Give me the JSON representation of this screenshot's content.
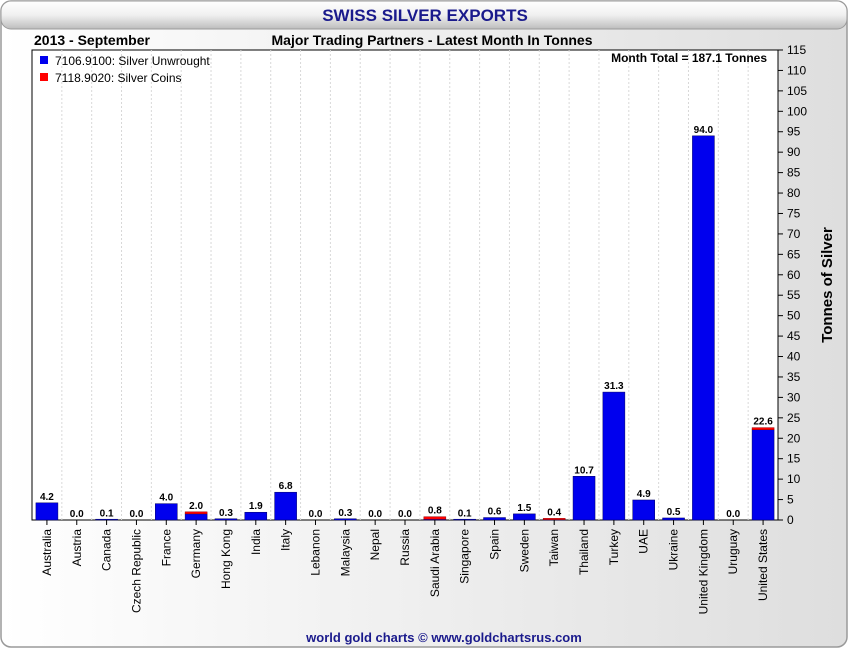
{
  "title": "SWISS SILVER EXPORTS",
  "period": "2013 - September",
  "subtitle": "Major Trading Partners - Latest Month In Tonnes",
  "month_total": "Month Total = 187.1 Tonnes",
  "footer": "world gold charts © www.goldchartsrus.com",
  "colors": {
    "unwrought": "#0000ee",
    "coins": "#ff0000",
    "title": "#1a1a8c"
  },
  "chart_data": {
    "type": "bar",
    "stacked": true,
    "categories": [
      "Australia",
      "Austria",
      "Canada",
      "Czech Republic",
      "France",
      "Germany",
      "Hong Kong",
      "India",
      "Italy",
      "Lebanon",
      "Malaysia",
      "Nepal",
      "Russia",
      "Saudi Arabia",
      "Singapore",
      "Spain",
      "Sweden",
      "Taiwan",
      "Thailand",
      "Turkey",
      "UAE",
      "Ukraine",
      "United Kingdom",
      "Uruguay",
      "United States"
    ],
    "series": [
      {
        "name": "7106.9100: Silver Unwrought",
        "color": "#0000ee",
        "values": [
          4.2,
          0.0,
          0.1,
          0.0,
          4.0,
          1.5,
          0.3,
          1.9,
          6.8,
          0.0,
          0.3,
          0.0,
          0.0,
          0.2,
          0.1,
          0.6,
          1.5,
          0.1,
          10.7,
          31.3,
          4.9,
          0.5,
          94.0,
          0.0,
          22.1
        ]
      },
      {
        "name": "7118.9020: Silver Coins",
        "color": "#ff0000",
        "values": [
          0.0,
          0.0,
          0.0,
          0.0,
          0.0,
          0.5,
          0.0,
          0.0,
          0.0,
          0.0,
          0.0,
          0.0,
          0.0,
          0.6,
          0.0,
          0.0,
          0.0,
          0.3,
          0.0,
          0.0,
          0.0,
          0.0,
          0.0,
          0.0,
          0.5
        ]
      }
    ],
    "value_labels": [
      "4.2",
      "0.0",
      "0.1",
      "0.0",
      "4.0",
      "2.0",
      "0.3",
      "1.9",
      "6.8",
      "0.0",
      "0.3",
      "0.0",
      "0.0",
      "0.8",
      "0.1",
      "0.6",
      "1.5",
      "0.4",
      "10.7",
      "31.3",
      "4.9",
      "0.5",
      "94.0",
      "0.0",
      "22.6"
    ],
    "ylabel": "Tonnes of Silver",
    "ylim": [
      0,
      115
    ],
    "ytick_step": 5,
    "y_axis_side": "right",
    "grid": true,
    "legend": "top-left"
  }
}
